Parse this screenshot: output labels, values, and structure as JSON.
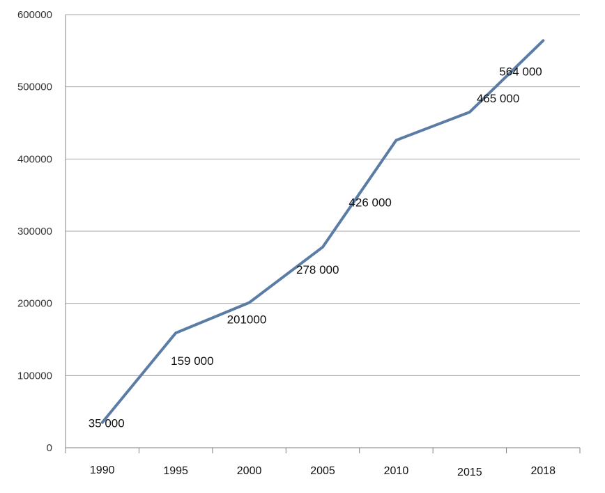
{
  "chart_data": {
    "type": "line",
    "title": "",
    "xlabel": "",
    "ylabel": "",
    "categories": [
      "1990",
      "1995",
      "2000",
      "2005",
      "2010",
      "2015",
      "2018"
    ],
    "series": [
      {
        "values": [
          35000,
          159000,
          201000,
          278000,
          426000,
          465000,
          564000
        ],
        "labels": [
          "35 000",
          "159 000",
          "201000",
          "278 000",
          "426 000",
          "465 000",
          "564 000"
        ],
        "color": "#5b7ca5"
      }
    ],
    "ylim": [
      0,
      600000
    ],
    "yticks": [
      0,
      100000,
      200000,
      300000,
      400000,
      500000,
      600000
    ],
    "ytick_labels": [
      "0",
      "100000",
      "200000",
      "300000",
      "400000",
      "500000",
      "600000"
    ],
    "grid": true,
    "legend": "none"
  }
}
